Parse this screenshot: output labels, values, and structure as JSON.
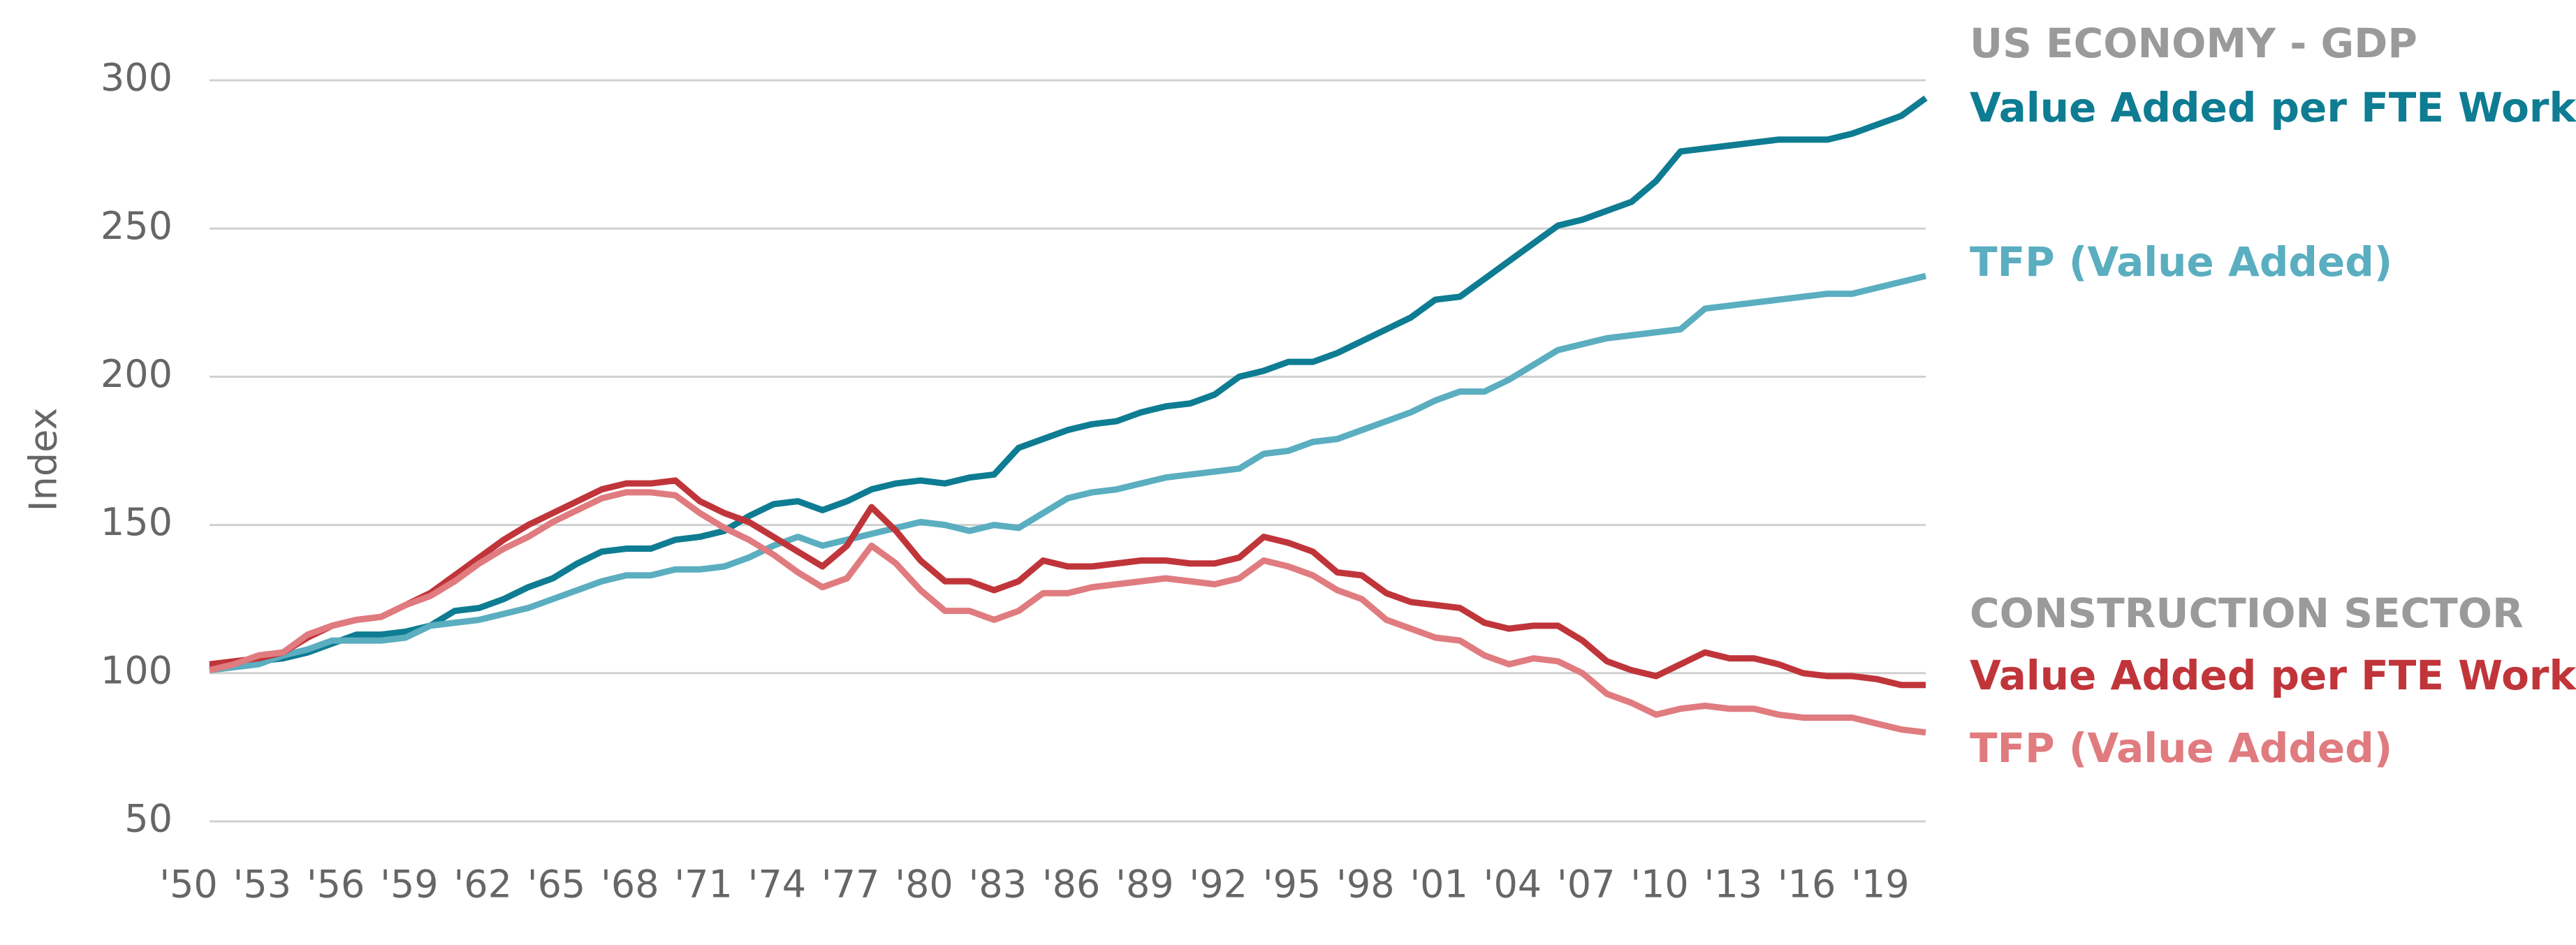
{
  "chart_data": {
    "type": "line",
    "y_label": "Index",
    "annotations": [
      "US ECONOMY - GDP",
      "CONSTRUCTION SECTOR"
    ],
    "x": [
      1950,
      1951,
      1952,
      1953,
      1954,
      1955,
      1956,
      1957,
      1958,
      1959,
      1960,
      1961,
      1962,
      1963,
      1964,
      1965,
      1966,
      1967,
      1968,
      1969,
      1970,
      1971,
      1972,
      1973,
      1974,
      1975,
      1976,
      1977,
      1978,
      1979,
      1980,
      1981,
      1982,
      1983,
      1984,
      1985,
      1986,
      1987,
      1988,
      1989,
      1990,
      1991,
      1992,
      1993,
      1994,
      1995,
      1996,
      1997,
      1998,
      1999,
      2000,
      2001,
      2002,
      2003,
      2004,
      2005,
      2006,
      2007,
      2008,
      2009,
      2010,
      2011,
      2012,
      2013,
      2014,
      2015,
      2016,
      2017,
      2018,
      2019,
      2020
    ],
    "series": [
      {
        "name": "Value Added per FTE Worker",
        "color": "#0e7c92",
        "values": [
          102,
          103,
          104,
          105,
          107,
          110,
          113,
          113,
          114,
          116,
          121,
          122,
          125,
          129,
          132,
          137,
          141,
          142,
          142,
          145,
          146,
          148,
          153,
          157,
          158,
          155,
          158,
          162,
          164,
          165,
          164,
          166,
          167,
          176,
          179,
          182,
          184,
          185,
          188,
          190,
          191,
          194,
          200,
          202,
          205,
          205,
          208,
          212,
          216,
          220,
          226,
          227,
          233,
          239,
          245,
          251,
          253,
          256,
          259,
          266,
          276,
          277,
          278,
          279,
          280,
          280,
          280,
          282,
          285,
          288,
          294
        ]
      },
      {
        "name": "TFP (Value Added)",
        "color": "#5aaec0",
        "values": [
          101,
          102,
          103,
          106,
          108,
          111,
          111,
          111,
          112,
          116,
          117,
          118,
          120,
          122,
          125,
          128,
          131,
          133,
          133,
          135,
          135,
          136,
          139,
          143,
          146,
          143,
          145,
          147,
          149,
          151,
          150,
          148,
          150,
          149,
          154,
          159,
          161,
          162,
          164,
          166,
          167,
          168,
          169,
          174,
          175,
          178,
          179,
          182,
          185,
          188,
          192,
          195,
          195,
          199,
          204,
          209,
          211,
          213,
          214,
          215,
          216,
          223,
          224,
          225,
          226,
          227,
          228,
          228,
          230,
          232,
          234
        ]
      },
      {
        "name": "Value Added per FTE Worker",
        "color": "#c0353a",
        "values": [
          103,
          104,
          105,
          107,
          112,
          116,
          118,
          119,
          123,
          127,
          133,
          139,
          145,
          150,
          154,
          158,
          162,
          164,
          164,
          165,
          158,
          154,
          151,
          146,
          141,
          136,
          143,
          156,
          148,
          138,
          131,
          131,
          128,
          131,
          138,
          136,
          136,
          137,
          138,
          138,
          137,
          137,
          139,
          146,
          144,
          141,
          134,
          133,
          127,
          124,
          123,
          122,
          117,
          115,
          116,
          116,
          111,
          104,
          101,
          99,
          103,
          107,
          105,
          105,
          103,
          100,
          99,
          99,
          98,
          96,
          96
        ]
      },
      {
        "name": "TFP (Value Added)",
        "color": "#e07b7f",
        "values": [
          101,
          103,
          106,
          107,
          113,
          116,
          118,
          119,
          123,
          126,
          131,
          137,
          142,
          146,
          151,
          155,
          159,
          161,
          161,
          160,
          154,
          149,
          145,
          140,
          134,
          129,
          132,
          143,
          137,
          128,
          121,
          121,
          118,
          121,
          127,
          127,
          129,
          130,
          131,
          132,
          131,
          130,
          132,
          138,
          136,
          133,
          128,
          125,
          118,
          115,
          112,
          111,
          106,
          103,
          105,
          104,
          100,
          93,
          90,
          86,
          88,
          89,
          88,
          88,
          86,
          85,
          85,
          85,
          83,
          81,
          80
        ]
      }
    ],
    "xlim": [
      1950,
      2020
    ],
    "xticks": [
      {
        "value": 1950,
        "label": "'50"
      },
      {
        "value": 1953,
        "label": "'53"
      },
      {
        "value": 1956,
        "label": "'56"
      },
      {
        "value": 1959,
        "label": "'59"
      },
      {
        "value": 1962,
        "label": "'62"
      },
      {
        "value": 1965,
        "label": "'65"
      },
      {
        "value": 1968,
        "label": "'68"
      },
      {
        "value": 1971,
        "label": "'71"
      },
      {
        "value": 1974,
        "label": "'74"
      },
      {
        "value": 1977,
        "label": "'77"
      },
      {
        "value": 1980,
        "label": "'80"
      },
      {
        "value": 1983,
        "label": "'83"
      },
      {
        "value": 1986,
        "label": "'86"
      },
      {
        "value": 1989,
        "label": "'89"
      },
      {
        "value": 1992,
        "label": "'92"
      },
      {
        "value": 1995,
        "label": "'95"
      },
      {
        "value": 1998,
        "label": "'98"
      },
      {
        "value": 2001,
        "label": "'01"
      },
      {
        "value": 2004,
        "label": "'04"
      },
      {
        "value": 2007,
        "label": "'07"
      },
      {
        "value": 2010,
        "label": "'10"
      },
      {
        "value": 2013,
        "label": "'13"
      },
      {
        "value": 2016,
        "label": "'16"
      },
      {
        "value": 2019,
        "label": "'19"
      }
    ],
    "ylim": [
      50,
      300
    ],
    "yticks": [
      50,
      100,
      150,
      200,
      250,
      300
    ],
    "grid": true
  }
}
